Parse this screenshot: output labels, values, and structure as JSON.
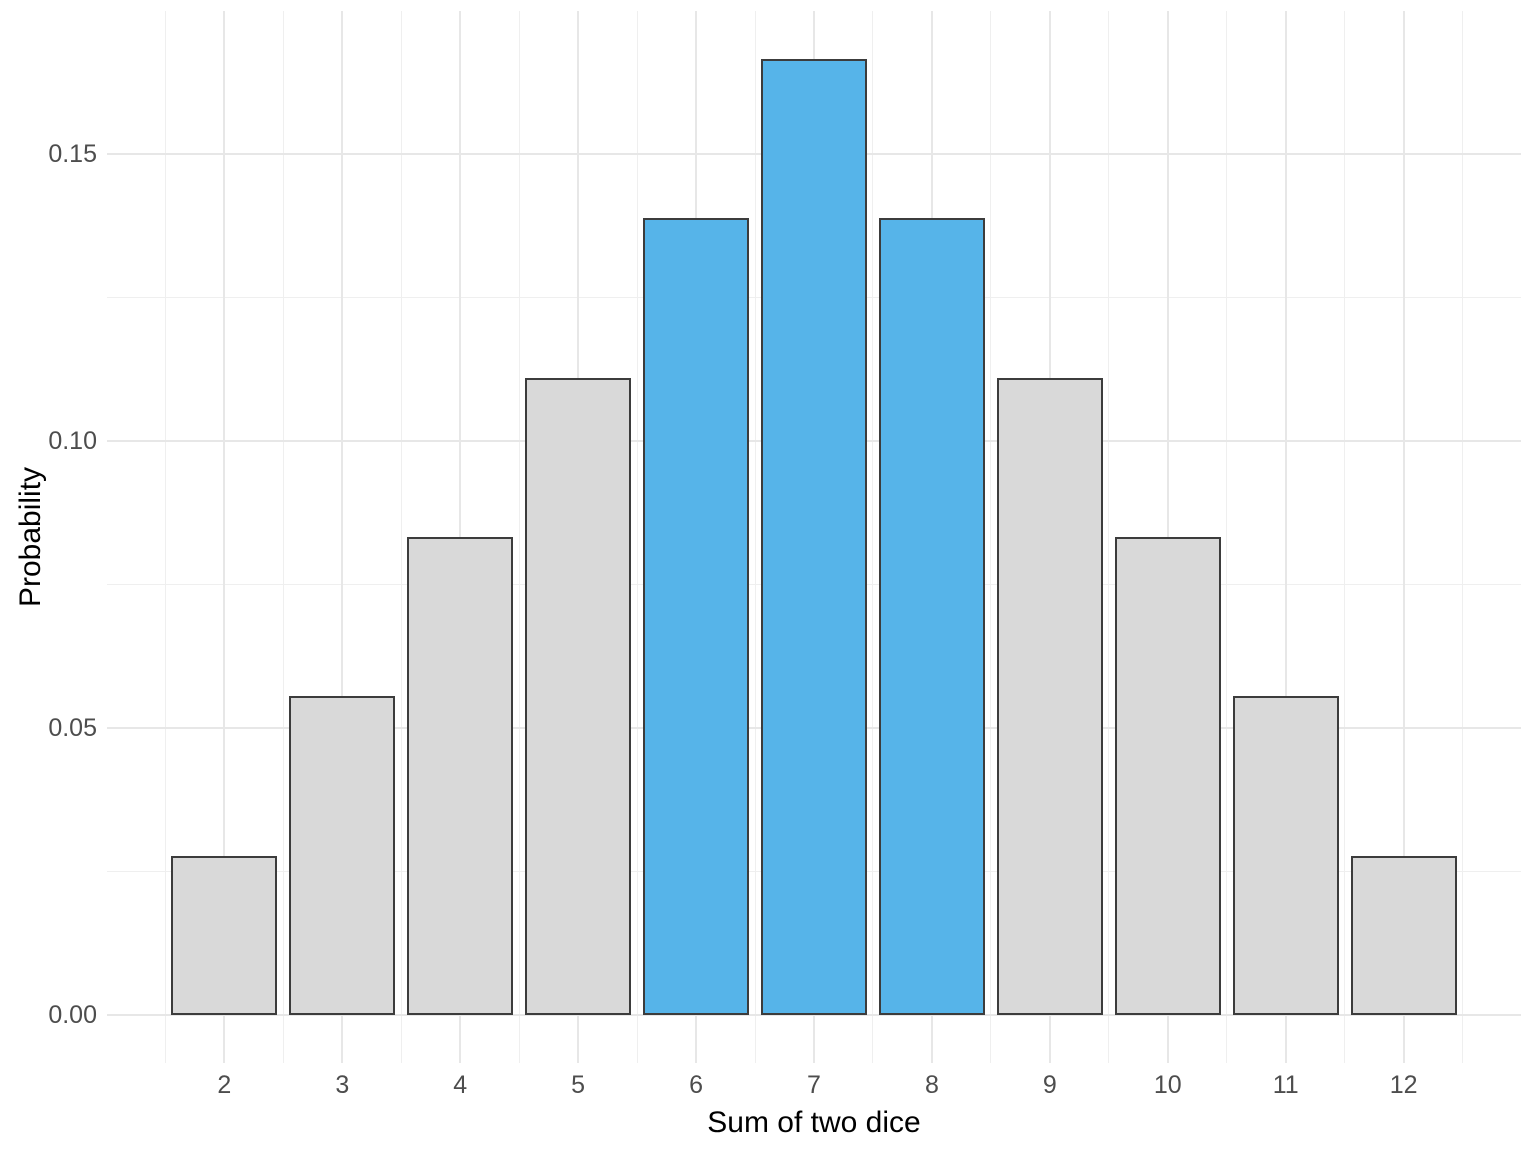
{
  "figure": {
    "background": "#FFFFFF"
  },
  "chart_data": {
    "type": "bar",
    "title": "",
    "xlabel": "Sum of two dice",
    "ylabel": "Probability",
    "categories": [
      2,
      3,
      4,
      5,
      6,
      7,
      8,
      9,
      10,
      11,
      12
    ],
    "values": [
      0.02778,
      0.05556,
      0.08333,
      0.11111,
      0.13889,
      0.16667,
      0.13889,
      0.11111,
      0.08333,
      0.05556,
      0.02778
    ],
    "highlighted_categories": [
      6,
      7,
      8
    ],
    "bar_width": 0.9,
    "xlim": [
      1.005,
      12.995
    ],
    "ylim": [
      -0.00833,
      0.175
    ],
    "x_ticks": [
      "2",
      "3",
      "4",
      "5",
      "6",
      "7",
      "8",
      "9",
      "10",
      "11",
      "12"
    ],
    "x_tick_values": [
      2,
      3,
      4,
      5,
      6,
      7,
      8,
      9,
      10,
      11,
      12
    ],
    "y_ticks": [
      "0.00",
      "0.05",
      "0.10",
      "0.15"
    ],
    "y_tick_values": [
      0,
      0.05,
      0.1,
      0.15
    ],
    "y_minor_values": [
      0.025,
      0.075,
      0.125
    ],
    "x_minor_values": [
      1.5,
      2.5,
      3.5,
      4.5,
      5.5,
      6.5,
      7.5,
      8.5,
      9.5,
      10.5,
      11.5,
      12.5
    ],
    "grid": true,
    "legend": "none",
    "colors": {
      "bar_fill": "#D9D9D9",
      "highlight_fill": "#56B4E9",
      "bar_border": "#3C3C3C",
      "grid_major": "#E7E7E7",
      "grid_minor": "#EFEFEF",
      "axis_text": "#4D4D4D",
      "axis_title": "#000000"
    }
  }
}
